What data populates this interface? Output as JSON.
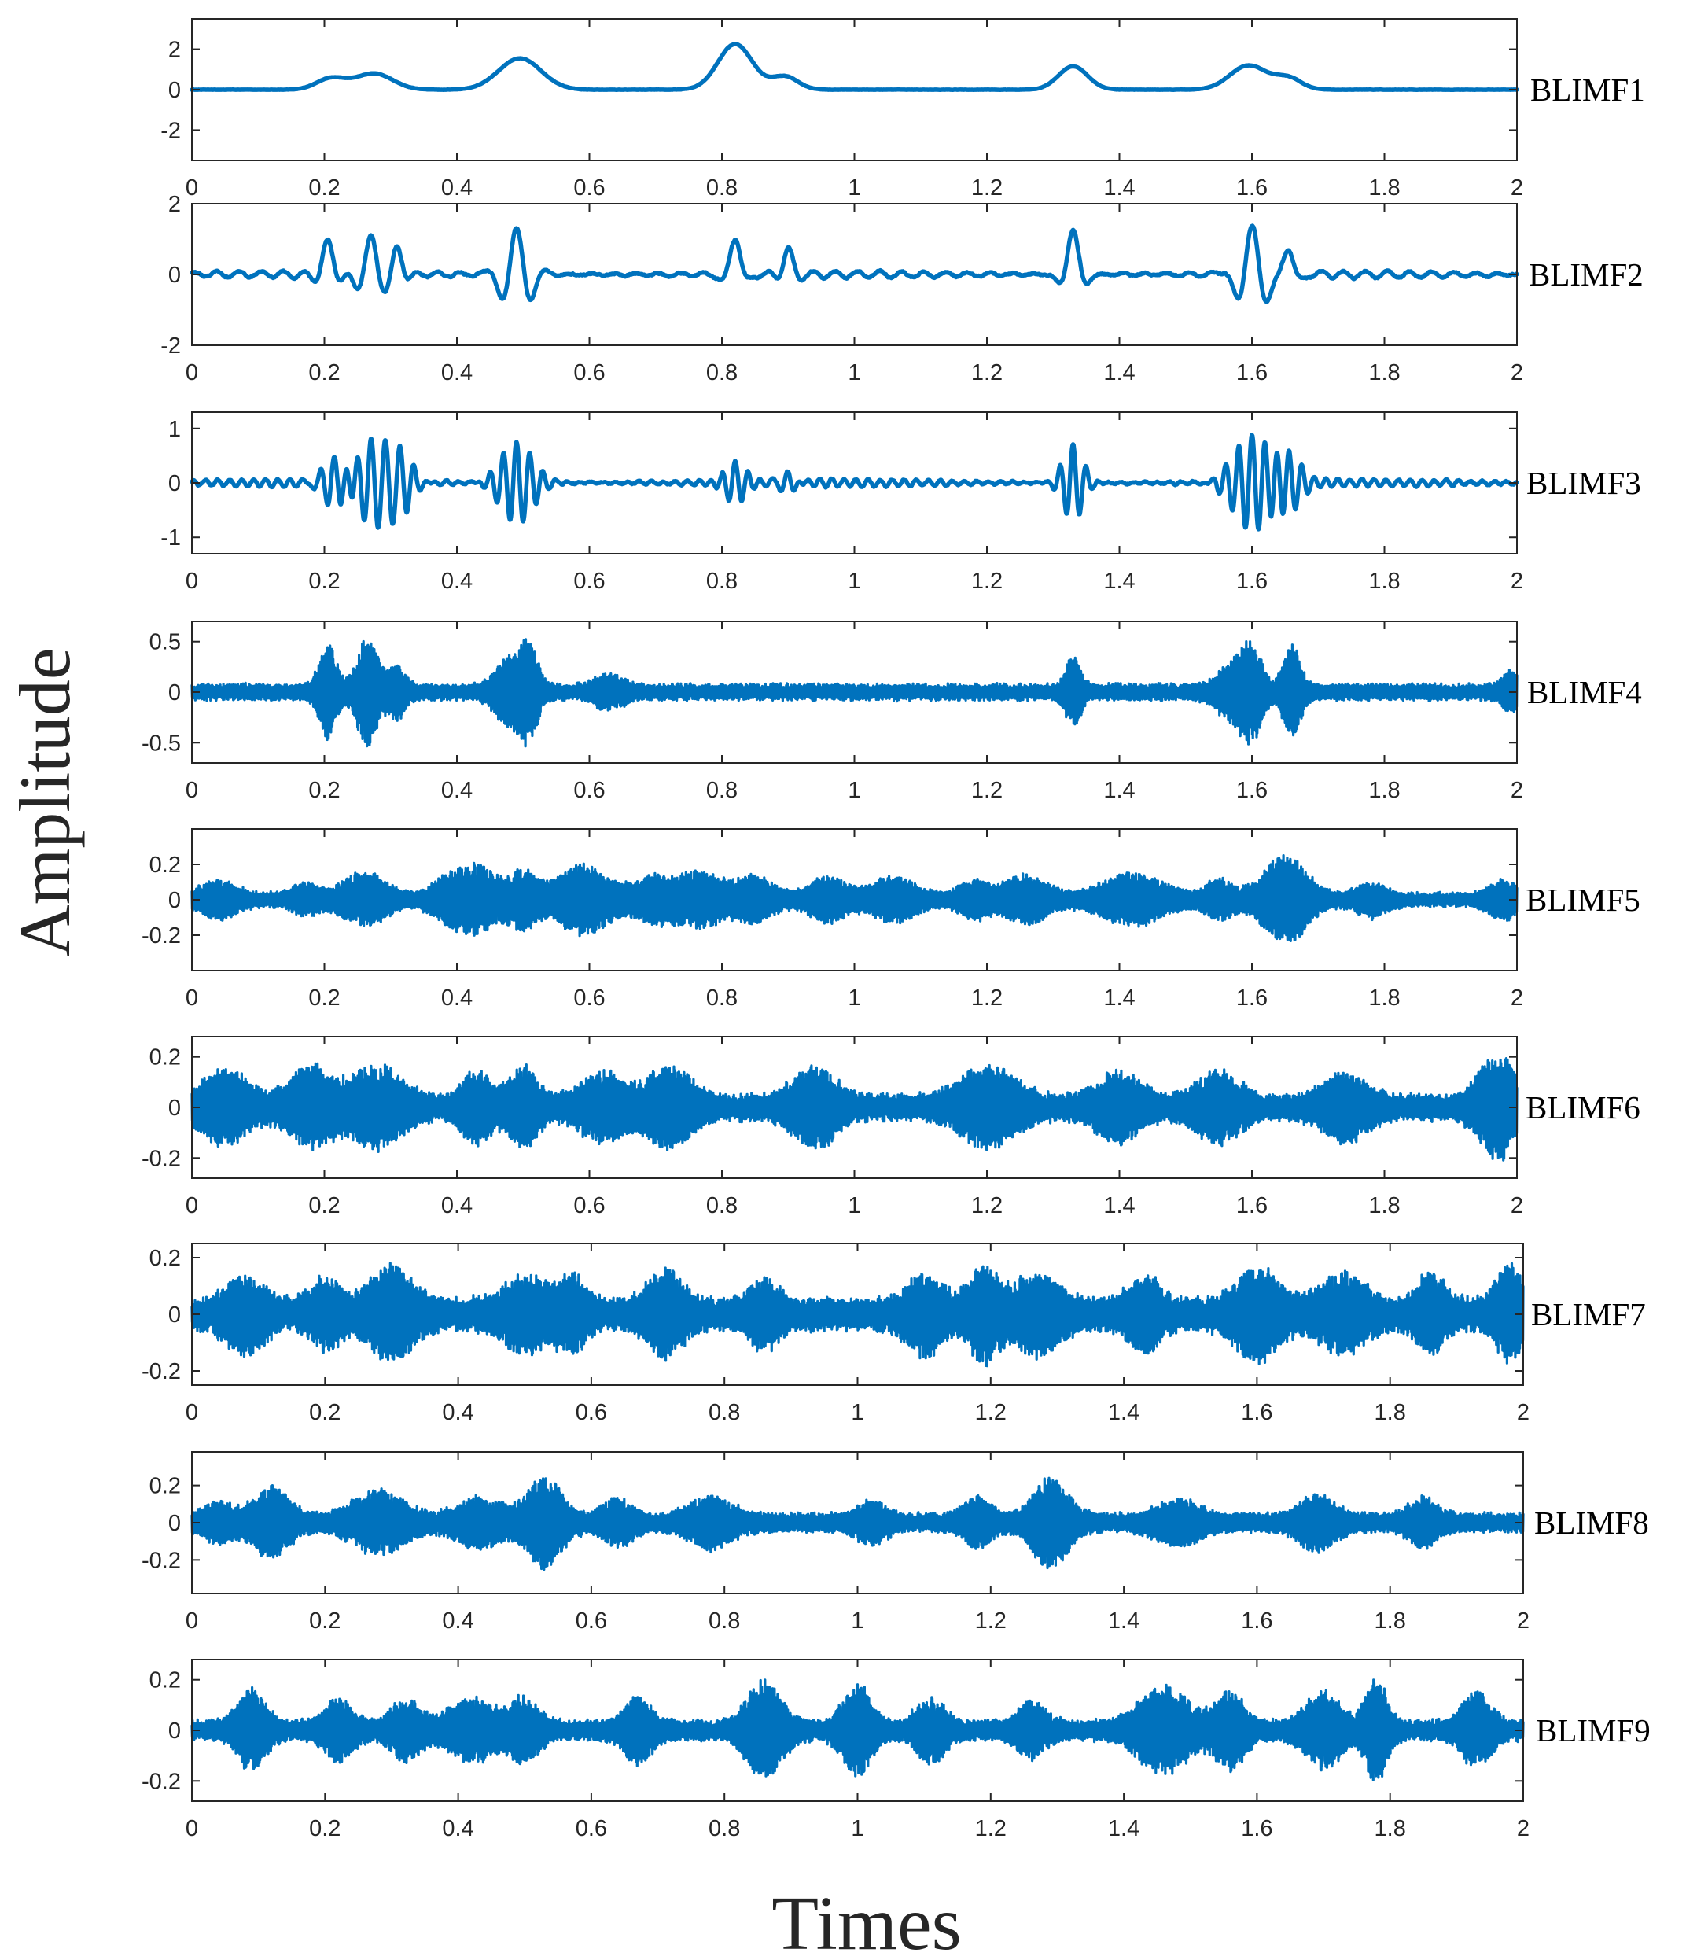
{
  "chart_data": {
    "type": "line",
    "xlabel": "Times",
    "ylabel": "Amplitude",
    "xlim": [
      0,
      2
    ],
    "x_ticks": [
      "0",
      "0.2",
      "0.4",
      "0.6",
      "0.8",
      "1",
      "1.2",
      "1.4",
      "1.6",
      "1.8",
      "2"
    ],
    "line_color": "#0072BD",
    "panels": [
      {
        "name": "BLIMF1",
        "ylim": [
          -3.5,
          3.5
        ],
        "y_ticks": [
          {
            "v": 2,
            "t": "2"
          },
          {
            "v": 0,
            "t": "0"
          },
          {
            "v": -2,
            "t": "-2"
          }
        ],
        "signal": {
          "kind": "smooth",
          "noise": 0.015,
          "events": [
            {
              "t": 0.21,
              "a": 0.55,
              "w": 0.022,
              "f": 0
            },
            {
              "t": 0.275,
              "a": 0.8,
              "w": 0.028,
              "f": 0
            },
            {
              "t": 0.495,
              "a": 1.55,
              "w": 0.032,
              "f": 0
            },
            {
              "t": 0.82,
              "a": 2.25,
              "w": 0.026,
              "f": 0
            },
            {
              "t": 0.895,
              "a": 0.65,
              "w": 0.02,
              "f": 0
            },
            {
              "t": 1.33,
              "a": 1.15,
              "w": 0.022,
              "f": 0
            },
            {
              "t": 1.595,
              "a": 1.2,
              "w": 0.028,
              "f": 0
            },
            {
              "t": 1.655,
              "a": 0.55,
              "w": 0.02,
              "f": 0
            }
          ]
        }
      },
      {
        "name": "BLIMF2",
        "ylim": [
          -2,
          2
        ],
        "y_ticks": [
          {
            "v": 2,
            "t": "2"
          },
          {
            "v": 0,
            "t": "0"
          },
          {
            "v": -2,
            "t": "-2"
          }
        ],
        "signal": {
          "kind": "smooth",
          "noise": 0.05,
          "background": 0.1,
          "background_freq": 30,
          "events": [
            {
              "t": 0.205,
              "a": 0.9,
              "w": 0.012,
              "f": 17
            },
            {
              "t": 0.27,
              "a": 1.0,
              "w": 0.016,
              "f": 19
            },
            {
              "t": 0.31,
              "a": 0.75,
              "w": 0.01,
              "f": 19
            },
            {
              "t": 0.49,
              "a": 1.35,
              "w": 0.02,
              "f": 21
            },
            {
              "t": 0.82,
              "a": 1.05,
              "w": 0.012,
              "f": 18
            },
            {
              "t": 0.9,
              "a": 0.7,
              "w": 0.01,
              "f": 18
            },
            {
              "t": 1.33,
              "a": 1.25,
              "w": 0.013,
              "f": 18
            },
            {
              "t": 1.6,
              "a": 1.35,
              "w": 0.02,
              "f": 20
            },
            {
              "t": 1.655,
              "a": 0.75,
              "w": 0.012,
              "f": 20
            }
          ]
        }
      },
      {
        "name": "BLIMF3",
        "ylim": [
          -1.3,
          1.3
        ],
        "y_ticks": [
          {
            "v": 1,
            "t": "1"
          },
          {
            "v": 0,
            "t": "0"
          },
          {
            "v": -1,
            "t": "-1"
          }
        ],
        "signal": {
          "kind": "smooth",
          "noise": 0.03,
          "background": 0.07,
          "background_freq": 55,
          "events": [
            {
              "t": 0.215,
              "a": 0.55,
              "w": 0.02,
              "f": 48
            },
            {
              "t": 0.27,
              "a": 0.8,
              "w": 0.025,
              "f": 48
            },
            {
              "t": 0.315,
              "a": 0.55,
              "w": 0.02,
              "f": 48
            },
            {
              "t": 0.49,
              "a": 0.75,
              "w": 0.025,
              "f": 50
            },
            {
              "t": 0.82,
              "a": 0.35,
              "w": 0.015,
              "f": 50
            },
            {
              "t": 0.9,
              "a": 0.25,
              "w": 0.012,
              "f": 50
            },
            {
              "t": 1.33,
              "a": 0.7,
              "w": 0.015,
              "f": 50
            },
            {
              "t": 1.6,
              "a": 0.85,
              "w": 0.03,
              "f": 50
            },
            {
              "t": 1.655,
              "a": 0.5,
              "w": 0.018,
              "f": 50
            }
          ]
        }
      },
      {
        "name": "BLIMF4",
        "ylim": [
          -0.7,
          0.7
        ],
        "y_ticks": [
          {
            "v": 0.5,
            "t": "0.5"
          },
          {
            "v": 0,
            "t": "0"
          },
          {
            "v": -0.5,
            "t": "-0.5"
          }
        ],
        "signal": {
          "kind": "band",
          "base": 0.07,
          "events": [
            {
              "t": 0.205,
              "a": 0.42,
              "w": 0.012
            },
            {
              "t": 0.265,
              "a": 0.45,
              "w": 0.015
            },
            {
              "t": 0.31,
              "a": 0.2,
              "w": 0.012
            },
            {
              "t": 0.48,
              "a": 0.28,
              "w": 0.02
            },
            {
              "t": 0.51,
              "a": 0.36,
              "w": 0.012
            },
            {
              "t": 0.63,
              "a": 0.12,
              "w": 0.02
            },
            {
              "t": 1.33,
              "a": 0.3,
              "w": 0.01
            },
            {
              "t": 1.57,
              "a": 0.22,
              "w": 0.02
            },
            {
              "t": 1.6,
              "a": 0.38,
              "w": 0.014
            },
            {
              "t": 1.66,
              "a": 0.4,
              "w": 0.012
            },
            {
              "t": 1.99,
              "a": 0.15,
              "w": 0.012
            }
          ]
        }
      },
      {
        "name": "BLIMF5",
        "ylim": [
          -0.4,
          0.4
        ],
        "y_ticks": [
          {
            "v": 0.2,
            "t": "0.2"
          },
          {
            "v": 0,
            "t": "0"
          },
          {
            "v": -0.2,
            "t": "-0.2"
          }
        ],
        "signal": {
          "kind": "band",
          "base": 0.035,
          "events": [
            {
              "t": 0.04,
              "a": 0.08,
              "w": 0.025
            },
            {
              "t": 0.17,
              "a": 0.06,
              "w": 0.02
            },
            {
              "t": 0.26,
              "a": 0.12,
              "w": 0.03
            },
            {
              "t": 0.38,
              "a": 0.07,
              "w": 0.02
            },
            {
              "t": 0.43,
              "a": 0.16,
              "w": 0.03
            },
            {
              "t": 0.5,
              "a": 0.12,
              "w": 0.02
            },
            {
              "t": 0.59,
              "a": 0.17,
              "w": 0.035
            },
            {
              "t": 0.7,
              "a": 0.1,
              "w": 0.03
            },
            {
              "t": 0.77,
              "a": 0.12,
              "w": 0.03
            },
            {
              "t": 0.85,
              "a": 0.1,
              "w": 0.025
            },
            {
              "t": 0.96,
              "a": 0.1,
              "w": 0.025
            },
            {
              "t": 1.06,
              "a": 0.1,
              "w": 0.03
            },
            {
              "t": 1.18,
              "a": 0.08,
              "w": 0.02
            },
            {
              "t": 1.26,
              "a": 0.11,
              "w": 0.03
            },
            {
              "t": 1.42,
              "a": 0.12,
              "w": 0.04
            },
            {
              "t": 1.55,
              "a": 0.08,
              "w": 0.02
            },
            {
              "t": 1.65,
              "a": 0.22,
              "w": 0.03
            },
            {
              "t": 1.78,
              "a": 0.07,
              "w": 0.02
            },
            {
              "t": 1.98,
              "a": 0.08,
              "w": 0.02
            }
          ]
        }
      },
      {
        "name": "BLIMF6",
        "ylim": [
          -0.28,
          0.28
        ],
        "y_ticks": [
          {
            "v": 0.2,
            "t": "0.2"
          },
          {
            "v": 0,
            "t": "0"
          },
          {
            "v": -0.2,
            "t": "-0.2"
          }
        ],
        "signal": {
          "kind": "band",
          "base": 0.045,
          "events": [
            {
              "t": 0.05,
              "a": 0.11,
              "w": 0.03
            },
            {
              "t": 0.18,
              "a": 0.12,
              "w": 0.03
            },
            {
              "t": 0.28,
              "a": 0.12,
              "w": 0.035
            },
            {
              "t": 0.43,
              "a": 0.1,
              "w": 0.02
            },
            {
              "t": 0.5,
              "a": 0.12,
              "w": 0.02
            },
            {
              "t": 0.62,
              "a": 0.1,
              "w": 0.03
            },
            {
              "t": 0.72,
              "a": 0.12,
              "w": 0.03
            },
            {
              "t": 0.94,
              "a": 0.12,
              "w": 0.03
            },
            {
              "t": 1.2,
              "a": 0.12,
              "w": 0.04
            },
            {
              "t": 1.4,
              "a": 0.1,
              "w": 0.03
            },
            {
              "t": 1.55,
              "a": 0.1,
              "w": 0.03
            },
            {
              "t": 1.74,
              "a": 0.1,
              "w": 0.03
            },
            {
              "t": 1.97,
              "a": 0.17,
              "w": 0.025
            }
          ]
        }
      },
      {
        "name": "BLIMF7",
        "ylim": [
          -0.25,
          0.25
        ],
        "y_ticks": [
          {
            "v": 0.2,
            "t": "0.2"
          },
          {
            "v": 0,
            "t": "0"
          },
          {
            "v": -0.2,
            "t": "-0.2"
          }
        ],
        "signal": {
          "kind": "band",
          "base": 0.05,
          "events": [
            {
              "t": 0.08,
              "a": 0.1,
              "w": 0.025
            },
            {
              "t": 0.2,
              "a": 0.08,
              "w": 0.02
            },
            {
              "t": 0.3,
              "a": 0.12,
              "w": 0.03
            },
            {
              "t": 0.5,
              "a": 0.09,
              "w": 0.03
            },
            {
              "t": 0.57,
              "a": 0.09,
              "w": 0.02
            },
            {
              "t": 0.71,
              "a": 0.11,
              "w": 0.025
            },
            {
              "t": 0.86,
              "a": 0.08,
              "w": 0.02
            },
            {
              "t": 1.1,
              "a": 0.1,
              "w": 0.025
            },
            {
              "t": 1.19,
              "a": 0.12,
              "w": 0.02
            },
            {
              "t": 1.27,
              "a": 0.1,
              "w": 0.03
            },
            {
              "t": 1.43,
              "a": 0.1,
              "w": 0.02
            },
            {
              "t": 1.6,
              "a": 0.12,
              "w": 0.03
            },
            {
              "t": 1.73,
              "a": 0.1,
              "w": 0.03
            },
            {
              "t": 1.86,
              "a": 0.1,
              "w": 0.02
            },
            {
              "t": 1.98,
              "a": 0.12,
              "w": 0.02
            }
          ]
        }
      },
      {
        "name": "BLIMF8",
        "ylim": [
          -0.38,
          0.38
        ],
        "y_ticks": [
          {
            "v": 0.2,
            "t": "0.2"
          },
          {
            "v": 0,
            "t": "0"
          },
          {
            "v": -0.2,
            "t": "-0.2"
          }
        ],
        "signal": {
          "kind": "band",
          "base": 0.045,
          "events": [
            {
              "t": 0.04,
              "a": 0.07,
              "w": 0.02
            },
            {
              "t": 0.12,
              "a": 0.15,
              "w": 0.025
            },
            {
              "t": 0.28,
              "a": 0.13,
              "w": 0.035
            },
            {
              "t": 0.43,
              "a": 0.1,
              "w": 0.03
            },
            {
              "t": 0.53,
              "a": 0.2,
              "w": 0.025
            },
            {
              "t": 0.64,
              "a": 0.09,
              "w": 0.02
            },
            {
              "t": 0.78,
              "a": 0.1,
              "w": 0.03
            },
            {
              "t": 1.02,
              "a": 0.08,
              "w": 0.02
            },
            {
              "t": 1.18,
              "a": 0.09,
              "w": 0.02
            },
            {
              "t": 1.29,
              "a": 0.2,
              "w": 0.025
            },
            {
              "t": 1.48,
              "a": 0.09,
              "w": 0.03
            },
            {
              "t": 1.69,
              "a": 0.11,
              "w": 0.025
            },
            {
              "t": 1.85,
              "a": 0.09,
              "w": 0.02
            }
          ]
        }
      },
      {
        "name": "BLIMF9",
        "ylim": [
          -0.28,
          0.28
        ],
        "y_ticks": [
          {
            "v": 0.2,
            "t": "0.2"
          },
          {
            "v": 0,
            "t": "0"
          },
          {
            "v": -0.2,
            "t": "-0.2"
          }
        ],
        "signal": {
          "kind": "band",
          "base": 0.035,
          "events": [
            {
              "t": 0.09,
              "a": 0.13,
              "w": 0.02
            },
            {
              "t": 0.22,
              "a": 0.09,
              "w": 0.02
            },
            {
              "t": 0.32,
              "a": 0.09,
              "w": 0.02
            },
            {
              "t": 0.42,
              "a": 0.1,
              "w": 0.03
            },
            {
              "t": 0.5,
              "a": 0.1,
              "w": 0.02
            },
            {
              "t": 0.67,
              "a": 0.1,
              "w": 0.02
            },
            {
              "t": 0.86,
              "a": 0.16,
              "w": 0.025
            },
            {
              "t": 1.0,
              "a": 0.15,
              "w": 0.02
            },
            {
              "t": 1.11,
              "a": 0.1,
              "w": 0.02
            },
            {
              "t": 1.26,
              "a": 0.08,
              "w": 0.02
            },
            {
              "t": 1.46,
              "a": 0.14,
              "w": 0.035
            },
            {
              "t": 1.56,
              "a": 0.12,
              "w": 0.02
            },
            {
              "t": 1.7,
              "a": 0.12,
              "w": 0.025
            },
            {
              "t": 1.78,
              "a": 0.17,
              "w": 0.015
            },
            {
              "t": 1.93,
              "a": 0.12,
              "w": 0.02
            }
          ]
        }
      }
    ]
  }
}
